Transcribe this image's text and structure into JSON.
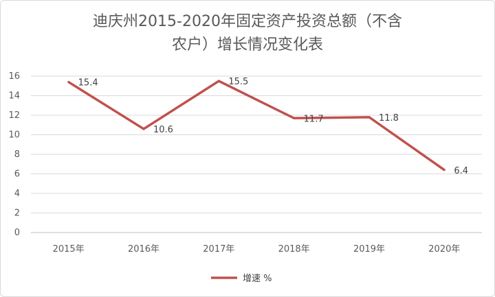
{
  "chart_data": {
    "type": "line",
    "title_line1": "迪庆州2015-2020年固定资产投资总额（不含",
    "title_line2": "农户）增长情况变化表",
    "categories": [
      "2015年",
      "2016年",
      "2017年",
      "2018年",
      "2019年",
      "2020年"
    ],
    "series": [
      {
        "name": "增速 %",
        "values": [
          15.4,
          10.6,
          15.5,
          11.7,
          11.8,
          6.4
        ],
        "color": "#c0504d"
      }
    ],
    "data_labels": [
      "15.4",
      "10.6",
      "15.5",
      "11.7",
      "11.8",
      "6.4"
    ],
    "y_ticks": [
      "0",
      "2",
      "4",
      "6",
      "8",
      "10",
      "12",
      "14",
      "16"
    ],
    "ylim": [
      0,
      16
    ],
    "grid": true,
    "legend_position": "bottom"
  }
}
